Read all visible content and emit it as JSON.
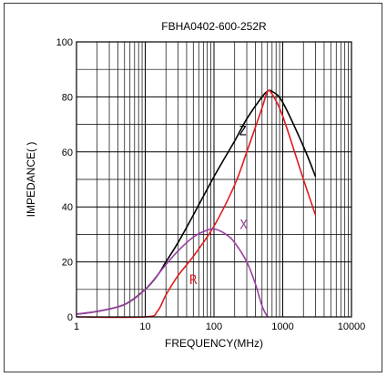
{
  "chart_data": {
    "type": "line",
    "title": "FBHA0402-600-252R",
    "xlabel": "FREQUENCY(MHz)",
    "ylabel": "IMPEDANCE(  )",
    "x_scale": "log",
    "xlim": [
      1,
      10000
    ],
    "ylim": [
      0,
      100
    ],
    "x_ticks": [
      1,
      10,
      100,
      1000,
      10000
    ],
    "x_tick_labels": [
      "1",
      "10",
      "100",
      "1000",
      "10000"
    ],
    "y_ticks": [
      0,
      20,
      40,
      60,
      80,
      100
    ],
    "y_tick_labels": [
      "0",
      "20",
      "40",
      "60",
      "80",
      "100"
    ],
    "grid": true,
    "legend": "none",
    "series": [
      {
        "name": "Z",
        "color": "#000000",
        "points": [
          [
            1,
            1
          ],
          [
            2,
            2
          ],
          [
            5,
            4.5
          ],
          [
            10,
            10
          ],
          [
            15,
            15
          ],
          [
            20,
            20
          ],
          [
            30,
            27
          ],
          [
            50,
            37
          ],
          [
            100,
            51
          ],
          [
            200,
            64
          ],
          [
            300,
            72
          ],
          [
            500,
            80
          ],
          [
            600,
            82
          ],
          [
            700,
            82
          ],
          [
            1000,
            78
          ],
          [
            2000,
            62
          ],
          [
            3000,
            51
          ]
        ]
      },
      {
        "name": "R",
        "color": "#e01b1b",
        "points": [
          [
            1,
            0
          ],
          [
            10,
            0
          ],
          [
            15,
            2
          ],
          [
            20,
            8
          ],
          [
            30,
            15
          ],
          [
            50,
            22
          ],
          [
            100,
            33
          ],
          [
            200,
            48
          ],
          [
            300,
            60
          ],
          [
            500,
            76
          ],
          [
            600,
            82
          ],
          [
            700,
            81
          ],
          [
            1000,
            73
          ],
          [
            2000,
            50
          ],
          [
            3000,
            37
          ]
        ]
      },
      {
        "name": "X",
        "color": "#9b3fa3",
        "points": [
          [
            1,
            1
          ],
          [
            2,
            2
          ],
          [
            5,
            4.5
          ],
          [
            10,
            10
          ],
          [
            20,
            19
          ],
          [
            30,
            24
          ],
          [
            50,
            29
          ],
          [
            70,
            31
          ],
          [
            100,
            32
          ],
          [
            150,
            30
          ],
          [
            200,
            27
          ],
          [
            300,
            20
          ],
          [
            400,
            12
          ],
          [
            500,
            4
          ],
          [
            600,
            0
          ]
        ]
      }
    ],
    "annotations": [
      {
        "text": "Z",
        "x": 260,
        "y": 66,
        "color": "#000000"
      },
      {
        "text": "X",
        "x": 270,
        "y": 32,
        "color": "#9b3fa3"
      },
      {
        "text": "R",
        "x": 50,
        "y": 12,
        "color": "#e01b1b"
      }
    ]
  }
}
